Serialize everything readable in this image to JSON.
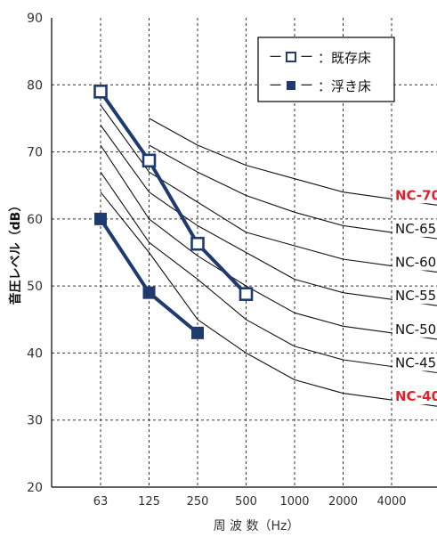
{
  "chart_data": {
    "type": "line",
    "xlabel": "周 波 数（Hz）",
    "ylabel": "音圧レベル（dB）",
    "categories": [
      "63",
      "125",
      "250",
      "500",
      "1000",
      "2000",
      "4000"
    ],
    "ylim": [
      20,
      90
    ],
    "y_ticks": [
      "20",
      "30",
      "40",
      "50",
      "60",
      "70",
      "80",
      "90"
    ],
    "grid": true,
    "legend_position": "top-right",
    "series": [
      {
        "name": "既存床",
        "values": [
          79,
          68.7,
          56.3,
          48.8,
          null,
          null,
          null
        ],
        "marker": "open-square",
        "color": "#1f3a6e"
      },
      {
        "name": "浮き床",
        "values": [
          60,
          49,
          43,
          null,
          null,
          null,
          null
        ],
        "marker": "filled-square",
        "color": "#1f3a6e"
      }
    ],
    "legend": [
      {
        "dash": "ー",
        "label": "：既存床"
      },
      {
        "dash": "ー",
        "label": "：浮き床"
      }
    ],
    "nc_curves": [
      {
        "label": "NC-70",
        "values": [
          null,
          75,
          71,
          68,
          66,
          64,
          63
        ],
        "highlight": true
      },
      {
        "label": "NC-65",
        "values": [
          null,
          71,
          67,
          63.5,
          61,
          59,
          58
        ],
        "highlight": false
      },
      {
        "label": "NC-60",
        "values": [
          77,
          67,
          62.5,
          58,
          56,
          54,
          53
        ],
        "highlight": false
      },
      {
        "label": "NC-55",
        "values": [
          74,
          64,
          59,
          55,
          51,
          49,
          48
        ],
        "highlight": false
      },
      {
        "label": "NC-50",
        "values": [
          71,
          60,
          54.5,
          50,
          46,
          44,
          43
        ],
        "highlight": false
      },
      {
        "label": "NC-45",
        "values": [
          67,
          56.5,
          51,
          45,
          41,
          39,
          38
        ],
        "highlight": false
      },
      {
        "label": "NC-40",
        "values": [
          64,
          55,
          45,
          40,
          36,
          34,
          33
        ],
        "highlight": true
      }
    ],
    "colors": {
      "series": "#1f3a6e",
      "highlight_label": "#e3202a",
      "label": "#111111",
      "grid": "#333333"
    }
  }
}
